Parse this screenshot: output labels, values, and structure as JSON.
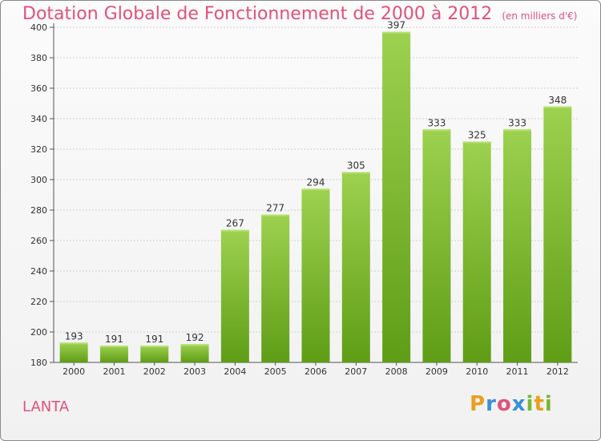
{
  "title": "Dotation Globale de Fonctionnement de 2000 à 2012",
  "subtitle": "(en milliers d'€)",
  "city": "LANTA",
  "logo": {
    "letters": [
      "P",
      "r",
      "o",
      "x",
      "i",
      "t",
      "i"
    ],
    "colors": [
      "#e8a020",
      "#3a8fd8",
      "#e0527a",
      "#3a8fd8",
      "#7ab830",
      "#e8a020",
      "#7ab830"
    ]
  },
  "colors": {
    "title": "#e0527a",
    "bar_top": "#9dd14f",
    "bar_bottom": "#5f9d16"
  },
  "chart_data": {
    "type": "bar",
    "categories": [
      "2000",
      "2001",
      "2002",
      "2003",
      "2004",
      "2005",
      "2006",
      "2007",
      "2008",
      "2009",
      "2010",
      "2011",
      "2012"
    ],
    "values": [
      193,
      191,
      191,
      192,
      267,
      277,
      294,
      305,
      397,
      333,
      325,
      333,
      348
    ],
    "ylim": [
      180,
      400
    ],
    "yticks": [
      180,
      200,
      220,
      240,
      260,
      280,
      300,
      320,
      340,
      360,
      380,
      400
    ],
    "grid": true
  }
}
